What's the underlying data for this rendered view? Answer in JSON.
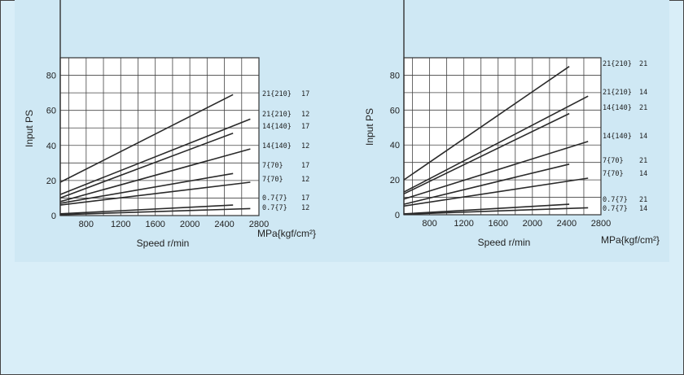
{
  "chart_data": [
    {
      "type": "line",
      "xlabel": "Speed r/min",
      "ylabel": "Input PS",
      "unit_label": "MPa{kgf/cm²}",
      "xlim": [
        500,
        2800
      ],
      "ylim": [
        0,
        90
      ],
      "x_ticks": [
        "800",
        "1200",
        "1600",
        "2000",
        "2400",
        "2800"
      ],
      "y_ticks": [
        "0",
        "20",
        "40",
        "60",
        "80"
      ],
      "grid": true,
      "series": [
        {
          "name": "21{210} 17",
          "pressure": "21{210}",
          "code": "17",
          "x": [
            500,
            2500
          ],
          "y": [
            19,
            69
          ]
        },
        {
          "name": "21{210} 12",
          "pressure": "21{210}",
          "code": "12",
          "x": [
            500,
            2700
          ],
          "y": [
            12,
            55
          ]
        },
        {
          "name": "14{140} 17",
          "pressure": "14{140}",
          "code": "17",
          "x": [
            500,
            2500
          ],
          "y": [
            10,
            47
          ]
        },
        {
          "name": "14{140} 12",
          "pressure": "14{140}",
          "code": "12",
          "x": [
            500,
            2700
          ],
          "y": [
            8,
            38
          ]
        },
        {
          "name": "7{70} 17",
          "pressure": "7{70}",
          "code": "17",
          "x": [
            500,
            2500
          ],
          "y": [
            7,
            24
          ]
        },
        {
          "name": "7{70} 12",
          "pressure": "7{70}",
          "code": "12",
          "x": [
            500,
            2700
          ],
          "y": [
            6,
            19
          ]
        },
        {
          "name": "0.7{7} 17",
          "pressure": "0.7{7}",
          "code": "17",
          "x": [
            500,
            2500
          ],
          "y": [
            1,
            6
          ]
        },
        {
          "name": "0.7{7} 12",
          "pressure": "0.7{7}",
          "code": "12",
          "x": [
            500,
            2700
          ],
          "y": [
            0.5,
            4
          ]
        }
      ]
    },
    {
      "type": "line",
      "xlabel": "Speed r/min",
      "ylabel": "Input PS",
      "unit_label": "MPa{kgf/cm²}",
      "xlim": [
        500,
        2800
      ],
      "ylim": [
        0,
        90
      ],
      "x_ticks": [
        "800",
        "1200",
        "1600",
        "2000",
        "2400",
        "2800"
      ],
      "y_ticks": [
        "0",
        "20",
        "40",
        "60",
        "80"
      ],
      "grid": true,
      "series": [
        {
          "name": "21{210} 21",
          "pressure": "21{210}",
          "code": "21",
          "x": [
            500,
            2430
          ],
          "y": [
            20,
            85
          ]
        },
        {
          "name": "21{210} 14",
          "pressure": "21{210}",
          "code": "14",
          "x": [
            500,
            2650
          ],
          "y": [
            13,
            68
          ]
        },
        {
          "name": "14{140} 21",
          "pressure": "14{140}",
          "code": "21",
          "x": [
            500,
            2430
          ],
          "y": [
            12,
            58
          ]
        },
        {
          "name": "14{140} 14",
          "pressure": "14{140}",
          "code": "14",
          "x": [
            500,
            2650
          ],
          "y": [
            9,
            42
          ]
        },
        {
          "name": "7{70} 21",
          "pressure": "7{70}",
          "code": "21",
          "x": [
            500,
            2430
          ],
          "y": [
            6,
            29
          ]
        },
        {
          "name": "7{70} 14",
          "pressure": "7{70}",
          "code": "14",
          "x": [
            500,
            2650
          ],
          "y": [
            5,
            21
          ]
        },
        {
          "name": "0.7{7} 21",
          "pressure": "0.7{7}",
          "code": "21",
          "x": [
            500,
            2430
          ],
          "y": [
            0.5,
            6
          ]
        },
        {
          "name": "0.7{7} 14",
          "pressure": "0.7{7}",
          "code": "14",
          "x": [
            500,
            2650
          ],
          "y": [
            0.3,
            4
          ]
        }
      ]
    }
  ]
}
